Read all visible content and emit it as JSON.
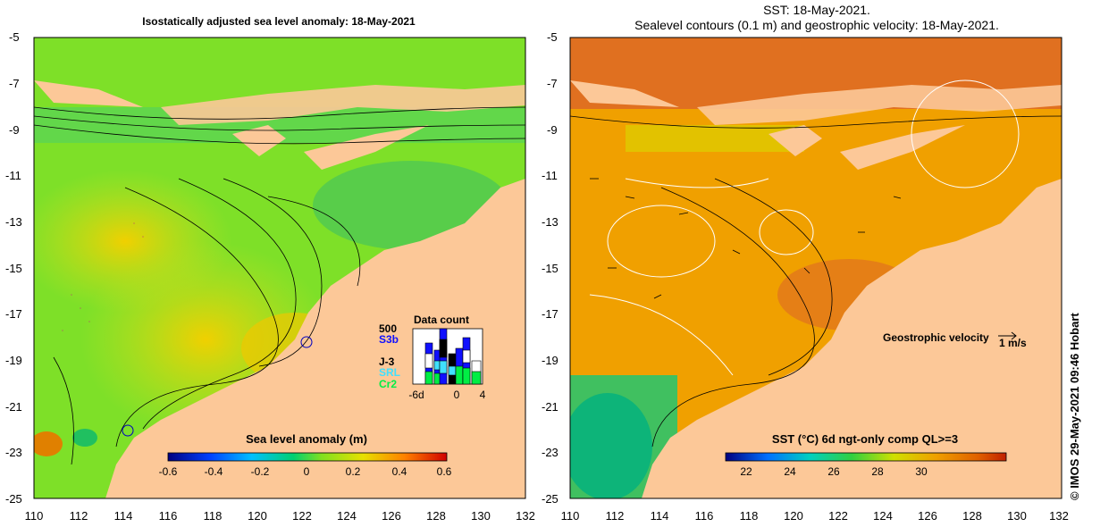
{
  "left_panel": {
    "title": "Isostatically adjusted sea level anomaly: 18-May-2021",
    "colorbar": {
      "title": "Sea level anomaly (m)",
      "ticks": [
        "-0.6",
        "-0.4",
        "-0.2",
        "0",
        "0.2",
        "0.4",
        "0.6"
      ]
    },
    "datacount": {
      "title": "Data count",
      "max_label": "500",
      "missions": [
        {
          "name": "S3b",
          "color": "#1010ff"
        },
        {
          "name": "J-3",
          "color": "#000000"
        },
        {
          "name": "SRL",
          "color": "#40e0ff"
        },
        {
          "name": "Cr2",
          "color": "#00ee44"
        }
      ],
      "x_ticks": [
        "-6d",
        "0",
        "4"
      ]
    }
  },
  "right_panel": {
    "title_line1": "SST: 18-May-2021.",
    "title_line2": "Sealevel contours (0.1 m) and geostrophic velocity: 18-May-2021.",
    "colorbar": {
      "title": "SST (°C) 6d ngt-only comp QL>=3",
      "ticks": [
        "22",
        "24",
        "26",
        "28",
        "30"
      ]
    },
    "velocity_legend": {
      "label": "Geostrophic velocity",
      "scale": "1 m/s"
    }
  },
  "axes": {
    "y_ticks": [
      "-5",
      "-7",
      "-9",
      "-11",
      "-13",
      "-15",
      "-17",
      "-19",
      "-21",
      "-23",
      "-25"
    ],
    "x_ticks": [
      "110",
      "112",
      "114",
      "116",
      "118",
      "120",
      "122",
      "124",
      "126",
      "128",
      "130",
      "132"
    ]
  },
  "credit": "© IMOS 29-May-2021 09:46 Hobart",
  "colors": {
    "land": "#fcc898",
    "ocean_green": "#80e020",
    "sst_orange": "#f0a000"
  }
}
